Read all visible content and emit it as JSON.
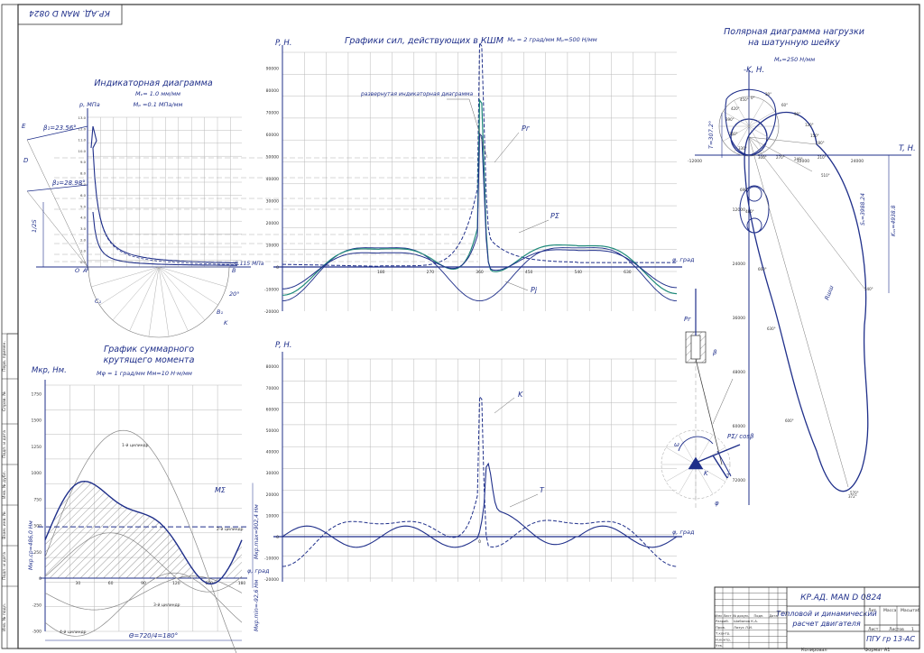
{
  "colors": {
    "ink": "#1f2f8a",
    "grid": "#b9b9b9",
    "aux": "#888888",
    "green": "#1f8a7a",
    "border": "#333333"
  },
  "stamp_top": "КР.АД. MAN D 0824",
  "indicator": {
    "title": "Индикаторная диаграмма",
    "scale1": "Mᵥ= 1.0 мм/мм",
    "scale2": "Mₚ =0.1 МПа/мм",
    "ylabel": "p, МПа",
    "beta1": "β₁=23.56°",
    "beta2": "β₂=28.98°",
    "side_label": "1/2S",
    "point_labels": [
      "E",
      "D",
      "A",
      "B",
      "O",
      "C₁",
      "B₁",
      "K"
    ],
    "angle_label": "20°",
    "value_label": "0.115 МПа"
  },
  "forces": {
    "title": "Графики сил, действующих в КШМ",
    "scales": "Mᵩ = 2 град/мм    Mₚ=500 Н/мм",
    "ylabel": "P, Н.",
    "xlabel": "φ, град",
    "yticks": [
      "90000",
      "80000",
      "70000",
      "60000",
      "50000",
      "40000",
      "30000",
      "20000",
      "10000",
      "0",
      "-10000",
      "-20000"
    ],
    "xticks": [
      "180",
      "270",
      "360",
      "450",
      "540",
      "630"
    ],
    "annotation": "развернутая индикаторная диаграмма",
    "labels": [
      "Pг",
      "PΣ",
      "Pj"
    ]
  },
  "tangential": {
    "ylabel": "P, Н.",
    "xlabel": "φ, град",
    "yticks": [
      "80000",
      "70000",
      "60000",
      "50000",
      "40000",
      "30000",
      "20000",
      "10000",
      "0",
      "-10000",
      "-20000"
    ],
    "xtick_zero": "0",
    "labels": [
      "K",
      "T"
    ]
  },
  "torque": {
    "title_line1": "График суммарного",
    "title_line2": "крутящего момента",
    "ylabel": "Mкр, Нм.",
    "scales": "Mφ = 1 град/мм    Mм=10  Н·м/мм",
    "yticks": [
      "1750",
      "1500",
      "1250",
      "1000",
      "750",
      "500",
      "250",
      "0",
      "-250",
      "-500"
    ],
    "xticks": [
      "30",
      "60",
      "90",
      "120",
      "150",
      "180"
    ],
    "xlabel": "φ, град",
    "label_sum": "MΣ",
    "avg_label": "Mкр.ср=486,0 Нм",
    "max_label": "Mкр.max=902,4 Нм",
    "min_label": "Mкр.min=-92,6 Нм",
    "period": "Θ=720/4=180°",
    "cyl_labels": [
      "1-й цилиндр",
      "2-й цилиндр",
      "3-й цилиндр",
      "4-й цилиндр"
    ]
  },
  "polar": {
    "title_line1": "Полярная диаграмма нагрузки",
    "title_line2": "на шатунную шейку",
    "scale": "Mₚ=250  Н/мм",
    "axis_y": "-K, Н.",
    "axis_x": "T, Н.",
    "yticks": [
      "12000",
      "24000",
      "36000",
      "48000",
      "60000",
      "72000"
    ],
    "xticks": [
      "-12000",
      "12000",
      "24000"
    ],
    "label_s": "Sₛ=3988.24",
    "label_k": "Kₛₛ=4938.8",
    "label_t": "T=307.2°",
    "label_r": "Rшш",
    "angle_labels": [
      "0°",
      "30°",
      "60°",
      "90°",
      "120°",
      "150°",
      "180°",
      "210°",
      "240°",
      "270°",
      "300°",
      "330°",
      "360°",
      "390°",
      "420°",
      "450°",
      "480°",
      "510°",
      "540°",
      "570°",
      "600°",
      "630°",
      "660°",
      "690°",
      "372°"
    ]
  },
  "kinematic": {
    "labels": [
      "Pг",
      "β",
      "ω",
      "PΣ/ cosβ",
      "K",
      "T",
      "φ"
    ]
  },
  "title_block": {
    "code": "КР.АД. MAN D 0824",
    "name_line1": "Тепловой и динамический",
    "name_line2": "расчет двигателя",
    "org": "ПГУ гр 13-АС",
    "cols": [
      "Изм",
      "Лист",
      "№ докум.",
      "Подп.",
      "Дата"
    ],
    "rows": [
      {
        "role": "Разраб.",
        "person": "Шабанов К.А."
      },
      {
        "role": "Пров.",
        "person": "Лазук Л.И."
      },
      {
        "role": "Т.контр.",
        "person": ""
      },
      {
        "role": "Н.контр.",
        "person": ""
      },
      {
        "role": "Утв.",
        "person": ""
      }
    ],
    "lit": "Лит.",
    "mass": "Масса",
    "scale": "Масштаб",
    "sheet": "Лист",
    "sheets": "Листов",
    "sheets_n": "1",
    "copied": "Копировал",
    "format": "Формат  А1"
  },
  "left_strip": [
    "Перв. примен.",
    "Справ. №",
    "Подп. и дата",
    "Инв. № дубл.",
    "Взам. инв. №",
    "Подп. и дата",
    "Инв. № подл."
  ]
}
